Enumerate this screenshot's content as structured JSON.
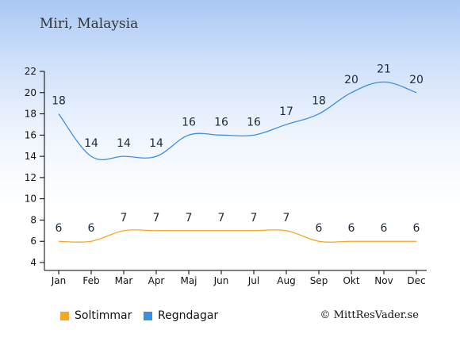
{
  "location_title": "Miri, Malaysia",
  "credit": "© MittResVader.se",
  "colors": {
    "sun": "#f5a623",
    "rain": "#3b8fe0",
    "axis": "#000000",
    "grid": "#cccccc"
  },
  "legend": [
    {
      "label": "Soltimmar",
      "color": "#f5a623"
    },
    {
      "label": "Regndagar",
      "color": "#3b8fe0"
    }
  ],
  "chart_data": {
    "type": "line",
    "categories": [
      "Jan",
      "Feb",
      "Mar",
      "Apr",
      "Maj",
      "Jun",
      "Jul",
      "Aug",
      "Sep",
      "Okt",
      "Nov",
      "Dec"
    ],
    "series": [
      {
        "name": "Soltimmar",
        "values": [
          6,
          6,
          7,
          7,
          7,
          7,
          7,
          7,
          6,
          6,
          6,
          6
        ]
      },
      {
        "name": "Regndagar",
        "values": [
          18,
          14,
          14,
          14,
          16,
          16,
          16,
          17,
          18,
          20,
          21,
          20
        ]
      }
    ],
    "yticks": [
      4,
      6,
      8,
      10,
      12,
      14,
      16,
      18,
      20,
      22
    ],
    "ylim": [
      4,
      22
    ],
    "grid": false,
    "legend_position": "bottom-left"
  }
}
